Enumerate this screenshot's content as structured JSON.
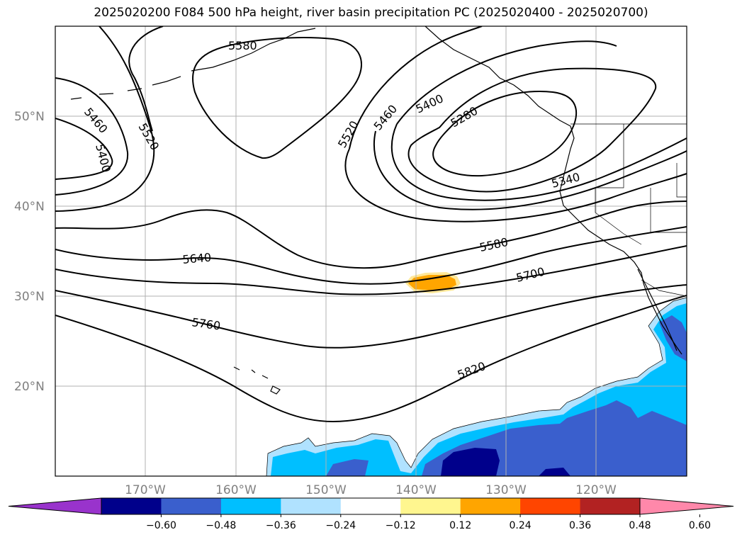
{
  "title": "2025020200 F084 500 hPa height, river basin precipitation PC (2025020400 - 2025020700)",
  "map": {
    "lon_range": [
      -180,
      -110
    ],
    "lat_range": [
      10,
      60
    ],
    "lat_labels": [
      "20°N",
      "30°N",
      "40°N",
      "50°N"
    ],
    "lon_labels": [
      "170°W",
      "160°W",
      "150°W",
      "140°W",
      "130°W",
      "120°W"
    ],
    "contour_labels": [
      "5580",
      "5460",
      "5520",
      "5400",
      "5460",
      "5400",
      "5520",
      "5280",
      "5340",
      "5640",
      "5580",
      "5700",
      "5760",
      "5820"
    ],
    "contour_color": "#000000",
    "gridline_color": "#b0b0b0",
    "land_outline_color": "#000000"
  },
  "colorbar": {
    "ticks": [
      "−0.60",
      "−0.48",
      "−0.36",
      "−0.24",
      "−0.12",
      "0.12",
      "0.24",
      "0.36",
      "0.48",
      "0.60"
    ],
    "colors": [
      "#9933cc",
      "#00008b",
      "#3a5fcd",
      "#00bfff",
      "#b0e2ff",
      "#ffffff",
      "#fff68f",
      "#ffa500",
      "#ff4500",
      "#b22222",
      "#ff88aa"
    ]
  },
  "shading_colors": {
    "orange": "#ffa500",
    "light_yellow": "#ffe89a",
    "light_blue": "#b0e2ff",
    "cyan": "#00bfff",
    "royal": "#3a5fcd",
    "navy": "#00008b"
  }
}
